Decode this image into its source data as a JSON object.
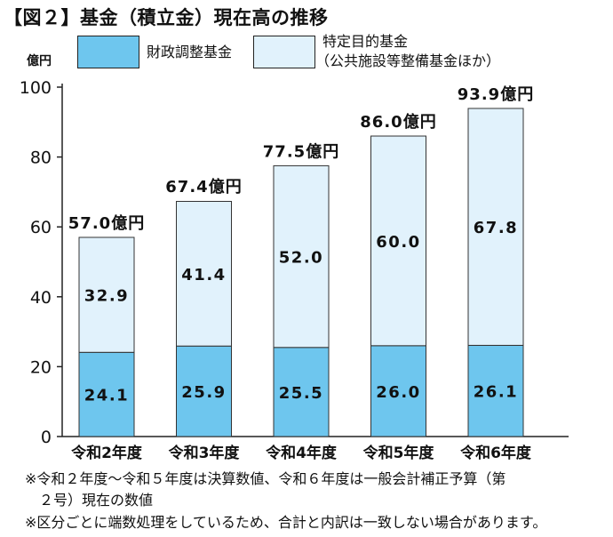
{
  "title": "【図２】基金（積立金）現在高の推移",
  "unit": "億円",
  "legend": [
    {
      "name": "財政調整基金",
      "color": "#6ec6ee"
    },
    {
      "name": "特定目的基金",
      "sub": "（公共施設等整備基金ほか）",
      "color": "#e1f2fc"
    }
  ],
  "chart_data": {
    "type": "bar",
    "stacked": true,
    "categories": [
      "令和2年度",
      "令和3年度",
      "令和4年度",
      "令和5年度",
      "令和6年度"
    ],
    "series": [
      {
        "name": "財政調整基金",
        "values": [
          24.1,
          25.9,
          25.5,
          26.0,
          26.1
        ],
        "labels": [
          "24.1",
          "25.9",
          "25.5",
          "26.0",
          "26.1"
        ]
      },
      {
        "name": "特定目的基金",
        "values": [
          32.9,
          41.4,
          52.0,
          60.0,
          67.8
        ],
        "labels": [
          "32.9",
          "41.4",
          "52.0",
          "60.0",
          "67.8"
        ]
      }
    ],
    "totals": [
      "57.0億円",
      "67.4億円",
      "77.5億円",
      "86.0億円",
      "93.9億円"
    ],
    "total_values": [
      57.0,
      67.4,
      77.5,
      86.0,
      93.9
    ],
    "yticks": [
      0,
      20,
      40,
      60,
      80,
      100
    ],
    "ylim": [
      0,
      100
    ],
    "grid": false
  },
  "notes": [
    "※令和２年度～令和５年度は決算数値、令和６年度は一般会計補正予算（第",
    "　２号）現在の数値",
    "※区分ごとに端数処理をしているため、合計と内訳は一致しない場合があります。"
  ]
}
